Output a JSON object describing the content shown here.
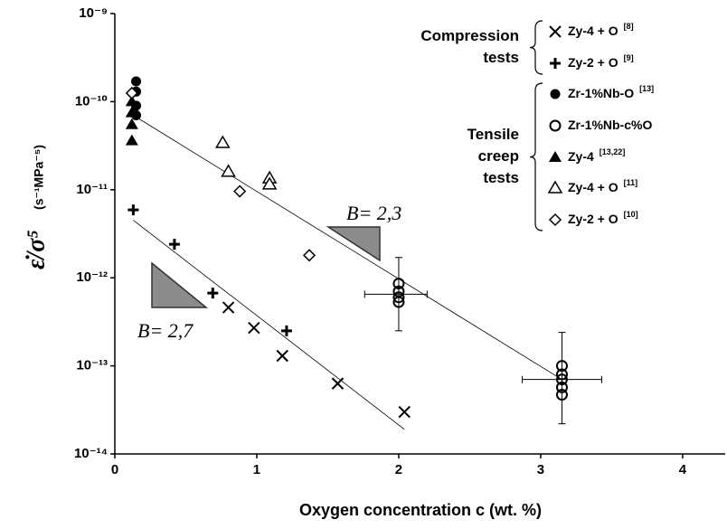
{
  "chart_data": {
    "type": "scatter",
    "xlabel": "Oxygen concentration c (wt. %)",
    "ylabel": "ε̇/σ⁵",
    "ylabel_units": "(s⁻¹MPa⁻⁵)",
    "xlim": [
      0,
      4.3
    ],
    "xticks": [
      0,
      1,
      2,
      3,
      4
    ],
    "ylim": [
      1e-14,
      1e-09
    ],
    "yscale": "log",
    "yticks": [
      {
        "value": 1e-14,
        "label": "10⁻¹⁴"
      },
      {
        "value": 1e-13,
        "label": "10⁻¹³"
      },
      {
        "value": 1e-12,
        "label": "10⁻¹²"
      },
      {
        "value": 1e-11,
        "label": "10⁻¹¹"
      },
      {
        "value": 1e-10,
        "label": "10⁻¹⁰"
      },
      {
        "value": 1e-09,
        "label": "10⁻⁹"
      }
    ],
    "grid": false,
    "legend": "upper right",
    "legend_groups": [
      {
        "label": [
          "Compression",
          "tests"
        ],
        "series": [
          0,
          1
        ]
      },
      {
        "label": [
          "Tensile",
          "creep",
          "tests"
        ],
        "series": [
          2,
          3,
          4,
          5,
          6
        ]
      }
    ],
    "series": [
      {
        "name": "Zy-4 + O",
        "ref": "[8]",
        "marker": "x",
        "color": "#000000",
        "x": [
          0.8,
          0.98,
          1.18,
          1.57,
          2.04
        ],
        "values": [
          4.6e-13,
          2.7e-13,
          1.3e-13,
          6.3e-14,
          3e-14
        ]
      },
      {
        "name": "Zy-2 + O",
        "ref": "[9]",
        "marker": "plus",
        "color": "#000000",
        "x": [
          0.13,
          0.42,
          0.69,
          1.21
        ],
        "values": [
          5.9e-12,
          2.4e-12,
          6.7e-13,
          2.5e-13
        ]
      },
      {
        "name": "Zr-1%Nb-O",
        "ref": "[13]",
        "marker": "circle-filled",
        "color": "#000000",
        "x": [
          0.15,
          0.15,
          0.15,
          0.15
        ],
        "values": [
          1.7e-10,
          1.3e-10,
          9e-11,
          7e-11
        ]
      },
      {
        "name": "Zr-1%Nb-c%O",
        "ref": "",
        "marker": "circle-open",
        "color": "#000000",
        "x": [
          2.0,
          2.0,
          2.0,
          2.0,
          3.15,
          3.15,
          3.15,
          3.15,
          3.15
        ],
        "values": [
          8.6e-13,
          7e-13,
          6e-13,
          5.3e-13,
          1e-13,
          8e-14,
          7e-14,
          5.7e-14,
          4.7e-14
        ],
        "errorbars": [
          {
            "x": 2.0,
            "y": 6.5e-13,
            "xlo": 1.76,
            "xhi": 2.2,
            "ylo": 2.5e-13,
            "yhi": 1.7e-12
          },
          {
            "x": 3.15,
            "y": 7e-14,
            "xlo": 2.87,
            "xhi": 3.43,
            "ylo": 2.2e-14,
            "yhi": 2.4e-13
          }
        ]
      },
      {
        "name": "Zy-4",
        "ref": "[13,22]",
        "marker": "triangle-filled",
        "color": "#000000",
        "x": [
          0.12,
          0.12,
          0.12,
          0.12
        ],
        "values": [
          1e-10,
          7.5e-11,
          5.5e-11,
          3.6e-11
        ]
      },
      {
        "name": "Zy-4 + O",
        "ref": "[11]",
        "marker": "triangle-open",
        "color": "#000000",
        "x": [
          0.76,
          0.8,
          1.09,
          1.09
        ],
        "values": [
          3.4e-11,
          1.6e-11,
          1.35e-11,
          1.15e-11
        ]
      },
      {
        "name": "Zy-2 + O",
        "ref": "[10]",
        "marker": "diamond-open",
        "color": "#000000",
        "x": [
          0.12,
          0.88,
          1.37
        ],
        "values": [
          1.25e-10,
          9.6e-12,
          1.8e-12
        ]
      }
    ],
    "fit_lines": [
      {
        "x": [
          0.13,
          3.15
        ],
        "y": [
          7e-11,
          7e-14
        ]
      },
      {
        "x": [
          0.13,
          2.04
        ],
        "y": [
          4.5e-12,
          1.9e-14
        ]
      }
    ],
    "annotations": [
      "B= 2,3",
      "B= 2,7"
    ]
  }
}
